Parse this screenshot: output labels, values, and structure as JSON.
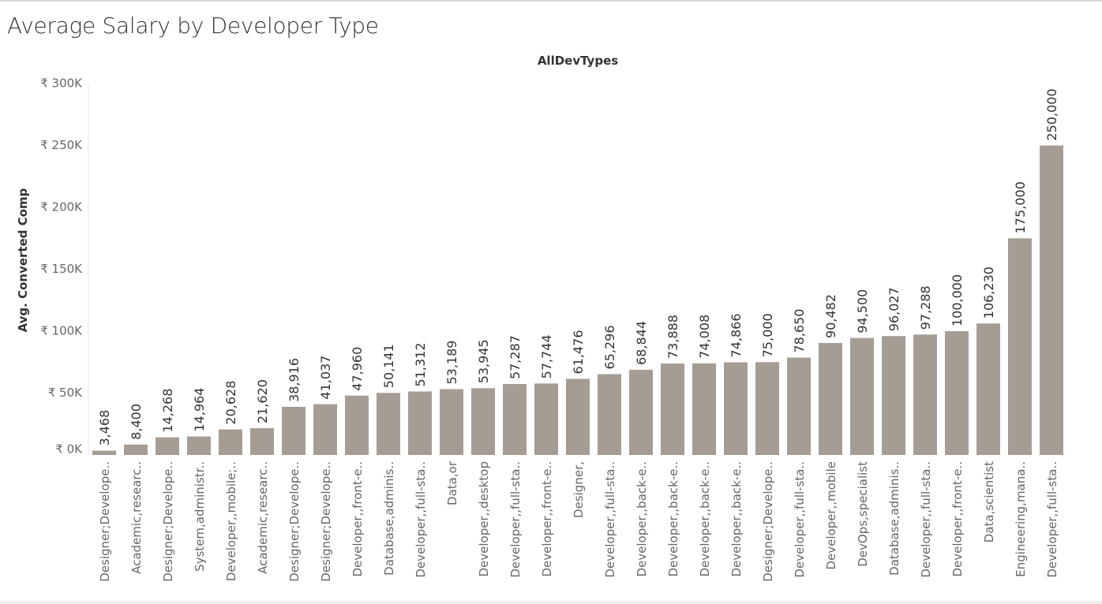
{
  "title": "Average Salary by Developer Type",
  "colors": {
    "bar": "#a59c94",
    "axis": "#d9d9d9"
  },
  "chart_data": {
    "type": "bar",
    "column_header": "AllDevTypes",
    "ylabel": "Avg. Converted Comp",
    "ylim": [
      0,
      300000
    ],
    "y_ticks": [
      {
        "value": 0,
        "label": "₹ 0K"
      },
      {
        "value": 50000,
        "label": "₹ 50K"
      },
      {
        "value": 100000,
        "label": "₹ 100K"
      },
      {
        "value": 150000,
        "label": "₹ 150K"
      },
      {
        "value": 200000,
        "label": "₹ 200K"
      },
      {
        "value": 250000,
        "label": "₹ 250K"
      },
      {
        "value": 300000,
        "label": "₹ 300K"
      }
    ],
    "categories": [
      "Designer;Develope..",
      "Academic,researc..",
      "Designer;Develope..",
      "System,administr..",
      "Developer,,mobile;..",
      "Academic,researc..",
      "Designer;Develope..",
      "Designer;Develope..",
      "Developer,,front-e..",
      "Database,adminis..",
      "Developer,,full-sta..",
      "Data,or",
      "Developer,,desktop",
      "Developer,,full-sta..",
      "Developer,,front-e..",
      "Designer,",
      "Developer,,full-sta..",
      "Developer,,back-e..",
      "Developer,,back-e..",
      "Developer,,back-e..",
      "Developer,,back-e..",
      "Designer;Develope..",
      "Developer,,full-sta..",
      "Developer,,mobile",
      "DevOps,specialist",
      "Database,adminis..",
      "Developer,,full-sta..",
      "Developer,,front-e..",
      "Data,scientist",
      "Engineering,mana..",
      "Developer,,full-sta.."
    ],
    "values": [
      3468,
      8400,
      14268,
      14964,
      20628,
      21620,
      38916,
      41037,
      47960,
      50141,
      51312,
      53189,
      53945,
      57287,
      57744,
      61476,
      65296,
      68844,
      73888,
      74008,
      74866,
      75000,
      78650,
      90482,
      94500,
      96027,
      97288,
      100000,
      106230,
      175000,
      250000
    ],
    "value_labels": [
      "3,468",
      "8,400",
      "14,268",
      "14,964",
      "20,628",
      "21,620",
      "38,916",
      "41,037",
      "47,960",
      "50,141",
      "51,312",
      "53,189",
      "53,945",
      "57,287",
      "57,744",
      "61,476",
      "65,296",
      "68,844",
      "73,888",
      "74,008",
      "74,866",
      "75,000",
      "78,650",
      "90,482",
      "94,500",
      "96,027",
      "97,288",
      "100,000",
      "106,230",
      "175,000",
      "250,000"
    ]
  }
}
